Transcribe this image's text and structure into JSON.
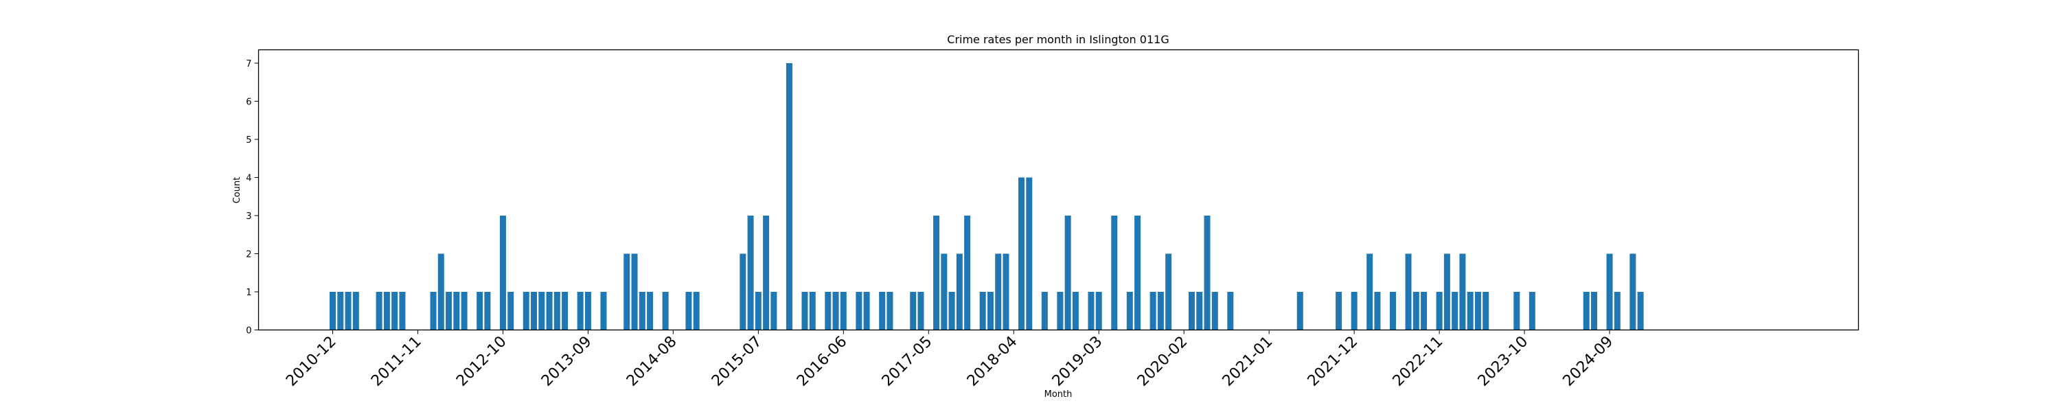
{
  "chart_data": {
    "type": "bar",
    "title": "Crime rates per month in Islington 011G",
    "xlabel": "Month",
    "ylabel": "Count",
    "ylim": [
      0,
      7.35
    ],
    "yticks": [
      0,
      1,
      2,
      3,
      4,
      5,
      6,
      7
    ],
    "xtick_labels": [
      "2010-12",
      "2011-11",
      "2012-10",
      "2013-09",
      "2014-08",
      "2015-07",
      "2016-06",
      "2017-05",
      "2018-04",
      "2019-03",
      "2020-02",
      "2021-01",
      "2021-12",
      "2022-11",
      "2023-10",
      "2024-09"
    ],
    "grid": false,
    "bar_color": "#1f77b4",
    "series": [
      {
        "x": [
          "2010-12",
          "2011-01",
          "2011-02",
          "2011-03",
          "2011-06",
          "2011-07",
          "2011-08",
          "2011-09",
          "2012-01",
          "2012-02",
          "2012-03",
          "2012-04",
          "2012-05",
          "2012-07",
          "2012-08",
          "2012-10",
          "2012-11",
          "2013-01",
          "2013-02",
          "2013-03",
          "2013-04",
          "2013-05",
          "2013-06",
          "2013-08",
          "2013-09",
          "2013-11",
          "2014-02",
          "2014-03",
          "2014-04",
          "2014-05",
          "2014-07",
          "2014-10",
          "2014-11",
          "2015-05",
          "2015-06",
          "2015-07",
          "2015-08",
          "2015-09",
          "2015-11",
          "2016-01",
          "2016-02",
          "2016-04",
          "2016-05",
          "2016-06",
          "2016-08",
          "2016-09",
          "2016-11",
          "2016-12",
          "2017-03",
          "2017-04",
          "2017-06",
          "2017-07",
          "2017-08",
          "2017-09",
          "2017-10",
          "2017-12",
          "2018-01",
          "2018-02",
          "2018-03",
          "2018-05",
          "2018-06",
          "2018-08",
          "2018-10",
          "2018-11",
          "2018-12",
          "2019-02",
          "2019-03",
          "2019-05",
          "2019-07",
          "2019-08",
          "2019-10",
          "2019-11",
          "2019-12",
          "2020-03",
          "2020-04",
          "2020-05",
          "2020-06",
          "2020-08",
          "2021-05",
          "2021-10",
          "2021-12",
          "2022-02",
          "2022-03",
          "2022-05",
          "2022-07",
          "2022-08",
          "2022-09",
          "2022-11",
          "2022-12",
          "2023-01",
          "2023-02",
          "2023-03",
          "2023-04",
          "2023-05",
          "2023-09",
          "2023-11",
          "2024-06",
          "2024-07",
          "2024-09",
          "2024-10",
          "2024-12",
          "2025-01"
        ],
        "values": [
          1,
          1,
          1,
          1,
          1,
          1,
          1,
          1,
          1,
          2,
          1,
          1,
          1,
          1,
          1,
          3,
          1,
          1,
          1,
          1,
          1,
          1,
          1,
          1,
          1,
          1,
          2,
          2,
          1,
          1,
          1,
          1,
          1,
          2,
          3,
          1,
          3,
          1,
          7,
          1,
          1,
          1,
          1,
          1,
          1,
          1,
          1,
          1,
          1,
          1,
          3,
          2,
          1,
          2,
          3,
          1,
          1,
          2,
          2,
          4,
          4,
          1,
          1,
          3,
          1,
          1,
          1,
          3,
          1,
          3,
          1,
          1,
          2,
          1,
          1,
          3,
          1,
          1,
          1,
          1,
          1,
          2,
          1,
          1,
          2,
          1,
          1,
          1,
          2,
          1,
          2,
          1,
          1,
          1,
          1,
          1,
          1,
          1,
          2,
          1,
          2,
          1
        ]
      }
    ]
  }
}
